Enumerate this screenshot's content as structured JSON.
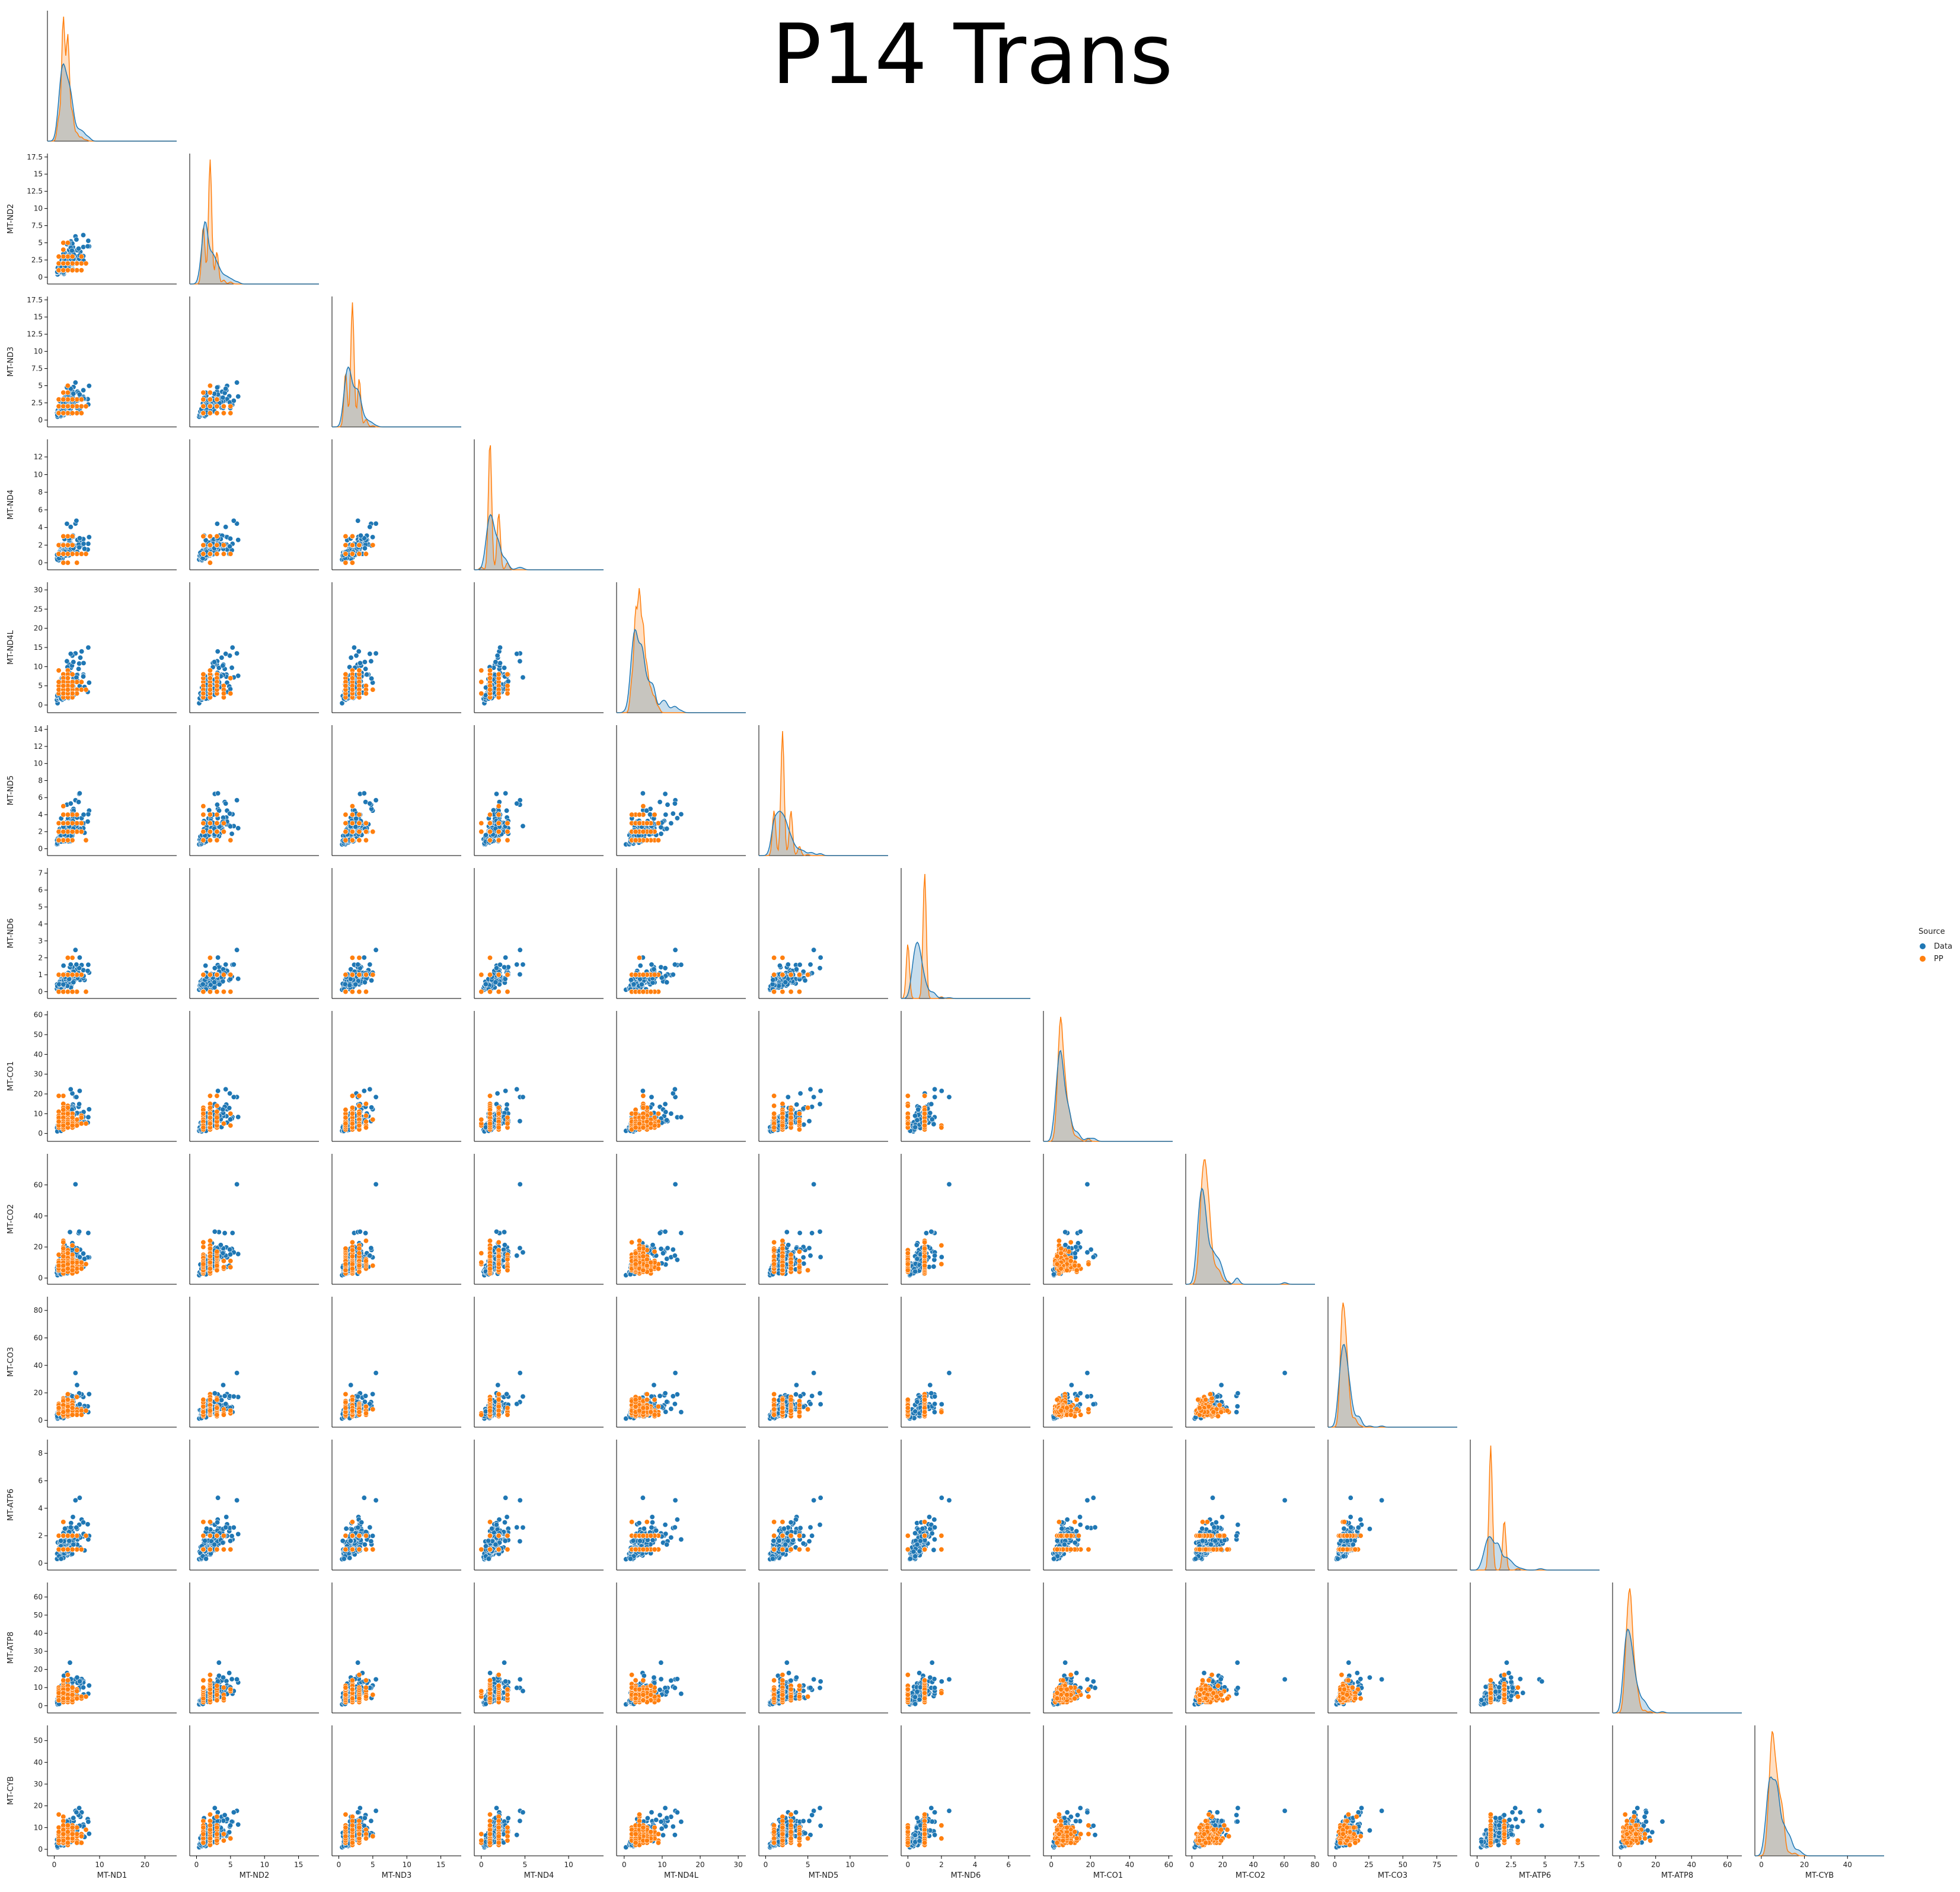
{
  "chart_data": {
    "type": "scatter",
    "subtype": "pairplot-corner",
    "title": "P14 Trans",
    "variables": [
      "MT-ND1",
      "MT-ND2",
      "MT-ND3",
      "MT-ND4",
      "MT-ND4L",
      "MT-ND5",
      "MT-ND6",
      "MT-CO1",
      "MT-CO2",
      "MT-CO3",
      "MT-ATP6",
      "MT-ATP8",
      "MT-CYB"
    ],
    "axes": {
      "MT-ND1": {
        "lim": [
          -1.5,
          27
        ],
        "ticks": [
          0,
          10,
          20
        ]
      },
      "MT-ND2": {
        "lim": [
          -1,
          18
        ],
        "ticks": [
          0.0,
          2.5,
          5.0,
          7.5,
          10.0,
          12.5,
          15.0,
          17.5
        ],
        "ticks_bottom": [
          0,
          5,
          10,
          15
        ]
      },
      "MT-ND3": {
        "lim": [
          -1,
          18
        ],
        "ticks": [
          0.0,
          2.5,
          5.0,
          7.5,
          10.0,
          12.5,
          15.0,
          17.5
        ],
        "ticks_bottom": [
          0,
          5,
          10,
          15
        ]
      },
      "MT-ND4": {
        "lim": [
          -0.8,
          14
        ],
        "ticks": [
          0,
          2,
          4,
          6,
          8,
          10,
          12
        ],
        "ticks_bottom": [
          0,
          5,
          10
        ]
      },
      "MT-ND4L": {
        "lim": [
          -2,
          32
        ],
        "ticks": [
          0,
          5,
          10,
          15,
          20,
          25,
          30
        ],
        "ticks_bottom": [
          0,
          10,
          20,
          30
        ]
      },
      "MT-ND5": {
        "lim": [
          -0.8,
          14.5
        ],
        "ticks": [
          0,
          2,
          4,
          6,
          8,
          10,
          12,
          14
        ],
        "ticks_bottom": [
          0,
          5,
          10
        ]
      },
      "MT-ND6": {
        "lim": [
          -0.4,
          7.3
        ],
        "ticks": [
          0,
          1,
          2,
          3,
          4,
          5,
          6,
          7
        ],
        "ticks_bottom": [
          0,
          2,
          4,
          6
        ]
      },
      "MT-CO1": {
        "lim": [
          -4,
          62
        ],
        "ticks": [
          0,
          10,
          20,
          30,
          40,
          50,
          60
        ],
        "ticks_bottom": [
          0,
          20,
          40,
          60
        ]
      },
      "MT-CO2": {
        "lim": [
          -4,
          80
        ],
        "ticks": [
          0,
          20,
          40,
          60
        ],
        "ticks_bottom": [
          0,
          20,
          40,
          60,
          80
        ]
      },
      "MT-CO3": {
        "lim": [
          -5,
          90
        ],
        "ticks": [
          0,
          20,
          40,
          60,
          80
        ],
        "ticks_bottom": [
          0,
          25,
          50,
          75
        ]
      },
      "MT-ATP6": {
        "lim": [
          -0.5,
          9
        ],
        "ticks": [
          0,
          2,
          4,
          6,
          8
        ],
        "ticks_bottom": [
          0.0,
          2.5,
          5.0,
          7.5
        ]
      },
      "MT-ATP8": {
        "lim": [
          -4,
          68
        ],
        "ticks": [
          0,
          10,
          20,
          30,
          40,
          50,
          60
        ],
        "ticks_bottom": [
          0,
          20,
          40,
          60
        ]
      },
      "MT-CYB": {
        "lim": [
          -3,
          57
        ],
        "ticks": [
          0,
          10,
          20,
          30,
          40,
          50
        ],
        "ticks_bottom": [
          0,
          20,
          40
        ]
      }
    },
    "means": {
      "MT-ND1": 2.5,
      "MT-ND2": 1.8,
      "MT-ND3": 1.9,
      "MT-ND4": 1.3,
      "MT-ND4L": 4.2,
      "MT-ND5": 2.0,
      "MT-ND6": 0.6,
      "MT-CO1": 5.5,
      "MT-CO2": 9.0,
      "MT-CO3": 7.0,
      "MT-ATP6": 1.2,
      "MT-ATP8": 5.5,
      "MT-CYB": 6.0
    },
    "series": [
      {
        "name": "Data",
        "color": "#1f77b4"
      },
      {
        "name": "PP",
        "color": "#ff7f0e"
      }
    ],
    "legend": {
      "title": "Source",
      "placement": "right"
    },
    "diagonal": "kde",
    "lower_triangle": "scatter",
    "grid": false
  }
}
